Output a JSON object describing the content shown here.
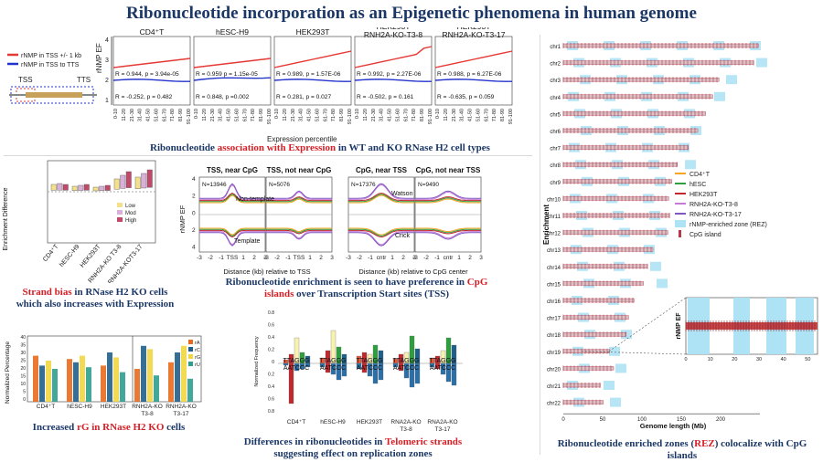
{
  "title": "Ribonucleotide incorporation as an Epigenetic phenomena in human genome",
  "panel_a": {
    "legend": [
      "rNMP in TSS +/- 1 kb",
      "rNMP in TSS to TTS"
    ],
    "tss_label": "TSS",
    "tts_label": "TTS",
    "ylabel": "rNMP EF",
    "xlabel": "Expression percentile",
    "ticks": [
      "0-10",
      "11-20",
      "21-30",
      "31-40",
      "41-50",
      "51-60",
      "61-70",
      "71-80",
      "81-90",
      "91-100"
    ],
    "yticks": [
      "1",
      "2",
      "3",
      "4"
    ],
    "cells": [
      {
        "name": "CD4⁺T",
        "r1": "R = 0.944,  p = 3.94e-05",
        "r2": "R = -0.252, p = 0.482"
      },
      {
        "name": "hESC-H9",
        "r1": "R = 0.959   p = 1.15e-05",
        "r2": "R = 0.848, p =0.002"
      },
      {
        "name": "HEK293T",
        "r1": "R = 0.989,  p = 1.57E-06",
        "r2": "R = 0.281, p = 0.027"
      },
      {
        "name": "HEK293T RNH2A-KO-T3-8",
        "r1": "R = 0.992,  p = 2.27E-06",
        "r2": "R = -0.502, p = 0.161"
      },
      {
        "name": "HEK293T RNH2A-KO-T3-17",
        "r1": "R = 0.988,  p = 6.27E-06",
        "r2": "R = -0.635, p = 0.059"
      }
    ],
    "caption_parts": [
      "Ribonucleotide ",
      "association with Expression",
      " in WT and KO RNase H2 cell types"
    ]
  },
  "panel_strand": {
    "ylabel": "Enrichment Difference",
    "legend": [
      "Low",
      "Mod",
      "High"
    ],
    "ticks": [
      "CD4⁺T",
      "hESC-H9",
      "HEK293T",
      "RNH2A-KO T3-8",
      "RNH2A-KOT3-17"
    ],
    "caption_parts": [
      "Strand bias",
      " in RNase H2 KO cells which also increases with Expression"
    ]
  },
  "panel_profile": {
    "ylabel": "rNMP EF",
    "titles": [
      "TSS, near CpG",
      "TSS, not near CpG",
      "CpG, near TSS",
      "CpG, not near TSS"
    ],
    "counts": [
      "N=13946",
      "N=5076",
      "N=17376",
      "N=9490"
    ],
    "labels": [
      "Non-template",
      "Template",
      "Watson",
      "Crick"
    ],
    "xticks_tss": [
      "-3",
      "-2",
      "-1",
      "TSS",
      "1",
      "2",
      "3"
    ],
    "xticks_cpg": [
      "-3",
      "-2",
      "-1",
      "cntr",
      "1",
      "2",
      "3"
    ],
    "xlabel_tss": "Distance (kb) relative to TSS",
    "xlabel_cpg": "Distance (kb) relative to CpG center",
    "yticks": [
      "4",
      "2",
      "0",
      "2",
      "4"
    ],
    "caption_parts": [
      "Ribonucleotide enrichment is seen to have preference in ",
      "CpG islands",
      " over Transcription Start sites (TSS)"
    ]
  },
  "panel_rg": {
    "ylabel": "Normalized Percentage",
    "legend": [
      "rA",
      "rC",
      "rG",
      "rU"
    ],
    "yticks": [
      "40",
      "35",
      "30",
      "25",
      "20",
      "15",
      "10",
      "5",
      "0"
    ],
    "ticks": [
      "CD4⁺T",
      "hESC-H9",
      "HEK293T",
      "RNH2A-KO T3-8",
      "RNH2A-KO T3-17"
    ],
    "caption_parts": [
      "Increased ",
      "rG in RNase H2 KO",
      " cells"
    ]
  },
  "panel_telomere": {
    "ylabel": "Normalized Frequency",
    "yticks": [
      "0.8",
      "0.6",
      "0.4",
      "0.2",
      "0",
      "0.2",
      "0.4",
      "0.6",
      "0.8"
    ],
    "seq_top": "TTAGGG",
    "seq_bottom": "AATCCC",
    "ticks": [
      "CD4⁺T",
      "hESC-H9",
      "HEK293T",
      "RNA2A-KO T3-8",
      "RNA2A-KO T3-17"
    ],
    "caption_parts": [
      "Differences in ribonucleotides in ",
      "Telomeric strands",
      " suggesting effect on replication zones"
    ]
  },
  "panel_rez": {
    "chromosomes": [
      "chr1",
      "chr2",
      "chr3",
      "chr4",
      "chr5",
      "chr6",
      "chr7",
      "chr8",
      "chr9",
      "chr10",
      "chr11",
      "chr12",
      "chr13",
      "chr14",
      "chr15",
      "chr16",
      "chr17",
      "chr18",
      "chr19",
      "chr20",
      "chr21",
      "chr22"
    ],
    "ylabel": "Enrichment",
    "xlabel": "Genome length (Mb)",
    "xticks": [
      "0",
      "50",
      "100",
      "150",
      "200"
    ],
    "legend": [
      "CD4⁺T",
      "hESC",
      "HEK293T",
      "RNH2A-KO-T3-8",
      "RNH2A-KO-T3-17",
      "rNMP-enriched zone (REZ)",
      "CpG island"
    ],
    "inset_ylabel": "rNMP EF",
    "inset_xticks": [
      "0",
      "10",
      "20",
      "30",
      "40",
      "50"
    ],
    "caption_parts": [
      "Ribonucleotide enriched zones (",
      "REZ",
      ") colocalize with CpG islands"
    ]
  },
  "colors": {
    "title": "#1b3766",
    "accent_red": "#d61f26",
    "cd4": "#f5a623",
    "hesc": "#2e9e3e",
    "hek": "#c0282d",
    "ko8": "#c77bd6",
    "ko17": "#7e57c2",
    "rez": "#aee3f5",
    "cpg": "#b2384a"
  }
}
